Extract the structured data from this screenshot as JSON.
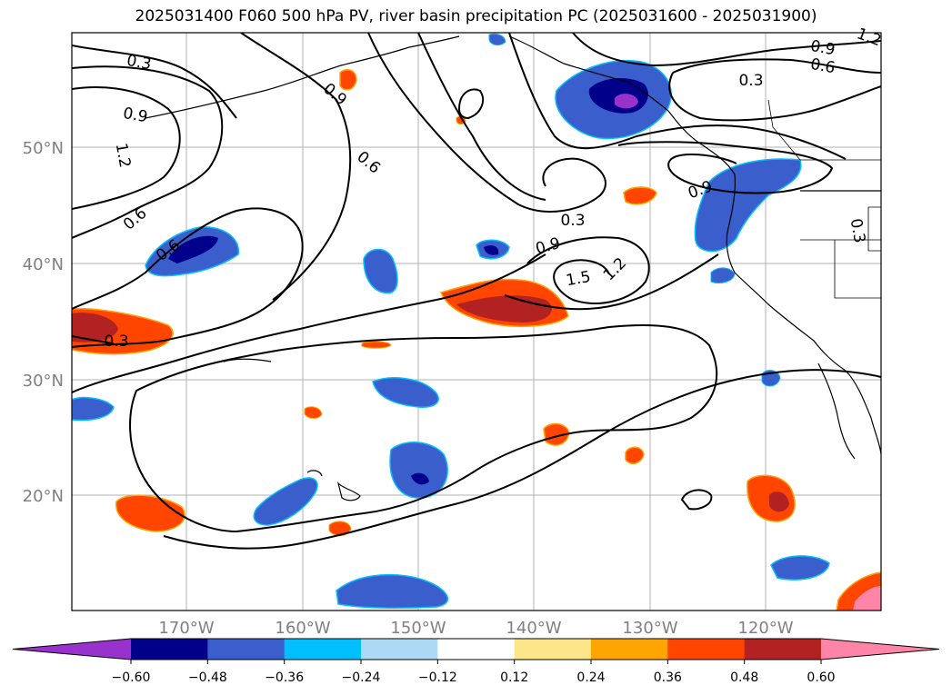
{
  "title": "2025031400 F060 500 hPa PV, river basin precipitation PC (2025031600 - 2025031900)",
  "axes": {
    "lat_labels": [
      "50°N",
      "40°N",
      "30°N",
      "20°N"
    ],
    "lon_labels": [
      "170°W",
      "160°W",
      "150°W",
      "140°W",
      "130°W",
      "120°W"
    ],
    "label_color": "#808080",
    "grid_color": "#b0b0b0"
  },
  "contour_labels": [
    "0.3",
    "0.9",
    "1.2",
    "0.6",
    "0.9",
    "0.6",
    "0.3",
    "0.9",
    "0.6",
    "1.2",
    "0.9",
    "0.3",
    "0.3",
    "0.9",
    "1.5",
    "1.2",
    "0.3",
    "0.6"
  ],
  "colorbar": {
    "ticks": [
      "−0.60",
      "−0.48",
      "−0.36",
      "−0.24",
      "−0.12",
      "0.12",
      "0.24",
      "0.36",
      "0.48",
      "0.60"
    ],
    "colors": [
      "#9932cc",
      "#00008b",
      "#3a5fcd",
      "#00bfff",
      "#add8f6",
      "#ffffff",
      "#fde68a",
      "#ffa500",
      "#ff4500",
      "#b22222",
      "#ff85a8"
    ]
  }
}
